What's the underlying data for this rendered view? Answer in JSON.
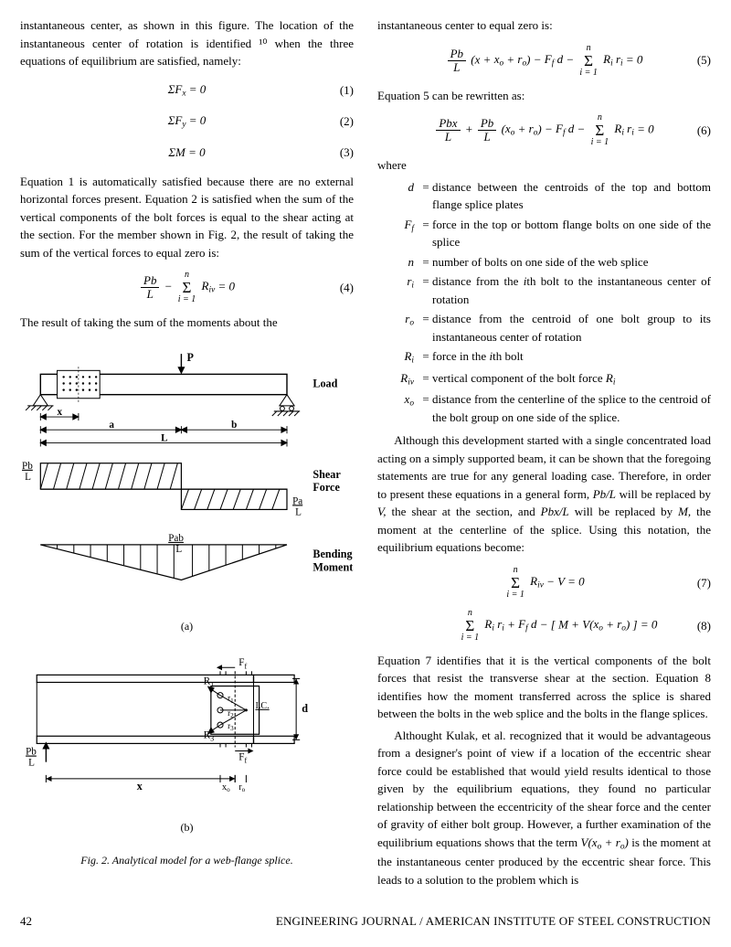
{
  "col1": {
    "p1": "instantaneous center, as shown in this figure. The location of the instantaneous center of rotation is identified ¹⁰ when the three equations of equilibrium are satisfied, namely:",
    "eq1": "Σ<i>F<sub>x</sub></i> = 0",
    "eq1n": "(1)",
    "eq2": "Σ<i>F<sub>y</sub></i> = 0",
    "eq2n": "(2)",
    "eq3": "Σ<i>M</i> = 0",
    "eq3n": "(3)",
    "p2": "Equation 1 is automatically satisfied because there are no external horizontal forces present. Equation 2 is satisfied when the sum of the vertical components of the bolt forces is equal to the shear acting at the section. For the member shown in Fig. 2, the result of taking the sum of the vertical forces to equal zero is:",
    "eq4n": "(4)",
    "p3": "The result of taking the sum of the moments about the",
    "figA": {
      "labels": {
        "P": "P",
        "Load": "Load",
        "x": "x",
        "a": "a",
        "b": "b",
        "L": "L",
        "PbL": "Pb",
        "PbLd": "L",
        "Shear": "Shear",
        "Force": "Force",
        "PaL": "Pa",
        "PaLd": "L",
        "Pab": "Pab",
        "Pabd": "L",
        "Bending": "Bending",
        "Moment": "Moment"
      },
      "sub": "(a)"
    },
    "figB": {
      "labels": {
        "Ff": "F",
        "Ffi": "f",
        "R1": "R",
        "R1i": "1",
        "ic": "I.C.",
        "d": "d",
        "PbL": "Pb",
        "PbLd": "L",
        "x": "x",
        "xo": "x",
        "xoi": "o",
        "ro": "r",
        "roi": "o",
        "r1": "r",
        "r2": "r",
        "r3": "r",
        "R3": "R"
      },
      "sub": "(b)"
    },
    "figcap": "Fig. 2. Analytical model for a web-flange splice."
  },
  "col2": {
    "p1": "instantaneous center to equal zero is:",
    "eq5n": "(5)",
    "p2": "Equation 5 can be rewritten as:",
    "eq6n": "(6)",
    "p3": "where",
    "defs": [
      {
        "s": "d",
        "t": "distance between the centroids of the top and bottom flange splice plates"
      },
      {
        "s": "F<sub>f</sub>",
        "t": "force in the top or bottom flange bolts on one side of the splice"
      },
      {
        "s": "n",
        "t": "number of bolts on one side of the  web splice"
      },
      {
        "s": "r<sub>i</sub>",
        "t": "distance from the <i>i</i>th bolt to the instantaneous center of rotation"
      },
      {
        "s": "r<sub>o</sub>",
        "t": "distance from the centroid of one bolt group to its instantaneous center of rotation"
      },
      {
        "s": "R<sub>i</sub>",
        "t": "force in the <i>i</i>th bolt"
      },
      {
        "s": "R<sub>iv</sub>",
        "t": "vertical component of the bolt force  <i>R<sub>i</sub></i>"
      },
      {
        "s": "x<sub>o</sub>",
        "t": "distance from the centerline of the splice to the centroid of the bolt group on one side of the splice."
      }
    ],
    "p4": "Although this development started with a single concentrated load acting on a simply supported beam, it can be shown that the foregoing statements are true for any general loading case. Therefore, in order to present these equations in a general form, <i>Pb/L</i> will be replaced by <i>V,</i> the shear at the section, and <i>Pbx/L</i> will be replaced by <i>M,</i> the moment at the centerline of the splice. Using this notation, the equilibrium equations become:",
    "eq7n": "(7)",
    "eq8n": "(8)",
    "p5": "Equation 7 identifies that it is the vertical components of the bolt forces that resist the transverse shear at the section. Equation 8 identifies how the moment transferred across the splice is shared between the bolts in the web splice and the bolts in the flange splices.",
    "p6": "Althought Kulak, et al. recognized that it would be advantageous from a designer's point of view if a location of the eccentric shear force could be established that would yield results identical to those given by the equilibrium equations, they found no particular relationship between the eccentricity of the shear force and the center of gravity of either bolt group. However, a further examination of the equilibrium equations shows that the term  <i>V(x<sub>o</sub> + r<sub>o</sub>)</i> is the moment at the instantaneous center produced by the eccentric shear force. This leads to a solution to the problem which is"
  },
  "footer": {
    "page": "42",
    "journal": "ENGINEERING JOURNAL / AMERICAN INSTITUTE OF STEEL CONSTRUCTION"
  }
}
